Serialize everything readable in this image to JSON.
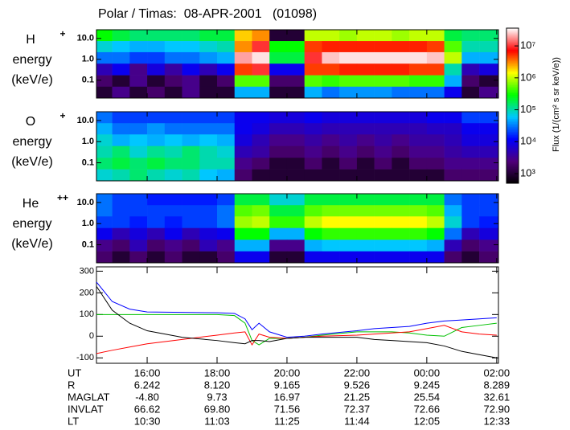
{
  "chart_data": [
    {
      "type": "heatmap",
      "ion": "H",
      "charge": "+",
      "label_lines": [
        "energy",
        "(keV/e)"
      ],
      "xlim": [
        14.55,
        26.05
      ],
      "ylim": [
        0.014,
        26
      ],
      "log_y": true,
      "yticks": [
        {
          "value": 10,
          "label": "10.0"
        },
        {
          "value": 1,
          "label": "1.0"
        },
        {
          "value": 0.1,
          "label": "0.1"
        }
      ],
      "x": [
        14.75,
        15.25,
        15.75,
        16.25,
        16.75,
        17.25,
        17.75,
        18.25,
        18.75,
        19.25,
        19.75,
        20.25,
        20.75,
        21.25,
        21.75,
        22.25,
        22.75,
        23.25,
        23.75,
        24.25,
        24.75,
        25.25,
        25.75
      ],
      "y": [
        14,
        4,
        1.2,
        0.32,
        0.093,
        0.026
      ],
      "values": [
        [
          300000.0,
          200000.0,
          150000.0,
          150000.0,
          150000.0,
          150000.0,
          200000.0,
          200000.0,
          2000000.0,
          3000000.0,
          1000.0,
          1000.0,
          1000000.0,
          1000000.0,
          800000.0,
          1000000.0,
          1000000.0,
          800000.0,
          1000000.0,
          1000000.0,
          200000.0,
          150000.0,
          150000.0
        ],
        [
          80000.0,
          60000.0,
          50000.0,
          50000.0,
          60000.0,
          60000.0,
          80000.0,
          100000.0,
          3000000.0,
          10000000.0,
          300000.0,
          300000.0,
          5000000.0,
          6000000.0,
          6000000.0,
          6000000.0,
          6000000.0,
          6000000.0,
          6000000.0,
          5000000.0,
          500000.0,
          100000.0,
          100000.0
        ],
        [
          30000.0,
          30000.0,
          20000.0,
          20000.0,
          30000.0,
          30000.0,
          40000.0,
          50000.0,
          20000000.0,
          30000000.0,
          200000.0,
          200000.0,
          10000000.0,
          25000000.0,
          30000000.0,
          30000000.0,
          30000000.0,
          30000000.0,
          30000000.0,
          25000000.0,
          1000000.0,
          50000.0,
          50000.0
        ],
        [
          5000.0,
          10000.0,
          3000.0,
          8000.0,
          4000.0,
          10000.0,
          5000.0,
          10000.0,
          5000000.0,
          10000000.0,
          10000.0,
          10000.0,
          5000000.0,
          5000000.0,
          6000000.0,
          6000000.0,
          6000000.0,
          6000000.0,
          5000000.0,
          5000000.0,
          100000.0,
          5000.0,
          8000.0
        ],
        [
          2000.0,
          1000.0,
          3000.0,
          1000.0,
          2000.0,
          3000.0,
          1000.0,
          2000.0,
          500000.0,
          500000.0,
          2000.0,
          2000.0,
          500000.0,
          400000.0,
          500000.0,
          500000.0,
          500000.0,
          500000.0,
          400000.0,
          400000.0,
          50000.0,
          2000.0,
          1000.0
        ],
        [
          1000.0,
          3000.0,
          1000.0,
          2000.0,
          1000.0,
          3000.0,
          1000.0,
          1000.0,
          50000.0,
          50000.0,
          1000.0,
          1000.0,
          50000.0,
          30000.0,
          40000.0,
          40000.0,
          40000.0,
          30000.0,
          30000.0,
          30000.0,
          10000.0,
          1000.0,
          3000.0
        ]
      ]
    },
    {
      "type": "heatmap",
      "ion": "O",
      "charge": "+",
      "label_lines": [
        "energy",
        "(keV/e)"
      ],
      "xlim": [
        14.55,
        26.05
      ],
      "ylim": [
        0.014,
        26
      ],
      "log_y": true,
      "yticks": [
        {
          "value": 10,
          "label": "10.0"
        },
        {
          "value": 1,
          "label": "1.0"
        },
        {
          "value": 0.1,
          "label": "0.1"
        }
      ],
      "x": [
        14.75,
        15.25,
        15.75,
        16.25,
        16.75,
        17.25,
        17.75,
        18.25,
        18.75,
        19.25,
        19.75,
        20.25,
        20.75,
        21.25,
        21.75,
        22.25,
        22.75,
        23.25,
        23.75,
        24.25,
        24.75,
        25.25,
        25.75
      ],
      "y": [
        14,
        4,
        1.2,
        0.32,
        0.093,
        0.026
      ],
      "values": [
        [
          30000.0,
          20000.0,
          20000.0,
          20000.0,
          20000.0,
          20000.0,
          20000.0,
          20000.0,
          10000.0,
          10000.0,
          8000.0,
          8000.0,
          10000.0,
          8000.0,
          8000.0,
          8000.0,
          8000.0,
          8000.0,
          8000.0,
          10000.0,
          10000.0,
          20000.0,
          20000.0
        ],
        [
          50000.0,
          30000.0,
          30000.0,
          40000.0,
          30000.0,
          30000.0,
          30000.0,
          30000.0,
          10000.0,
          8000.0,
          5000.0,
          5000.0,
          6000.0,
          5000.0,
          5000.0,
          5000.0,
          5000.0,
          5000.0,
          5000.0,
          6000.0,
          6000.0,
          10000.0,
          10000.0
        ],
        [
          80000.0,
          50000.0,
          60000.0,
          50000.0,
          60000.0,
          50000.0,
          60000.0,
          50000.0,
          8000.0,
          5000.0,
          3000.0,
          3000.0,
          4000.0,
          3000.0,
          4000.0,
          3000.0,
          4000.0,
          3000.0,
          4000.0,
          4000.0,
          5000.0,
          8000.0,
          8000.0
        ],
        [
          100000.0,
          150000.0,
          80000.0,
          120000.0,
          100000.0,
          150000.0,
          100000.0,
          80000.0,
          5000.0,
          4000.0,
          2000.0,
          2000.0,
          3000.0,
          2000.0,
          3000.0,
          2000.0,
          3000.0,
          2000.0,
          3000.0,
          3000.0,
          4000.0,
          5000.0,
          5000.0
        ],
        [
          150000.0,
          200000.0,
          150000.0,
          200000.0,
          150000.0,
          150000.0,
          100000.0,
          100000.0,
          3000.0,
          2000.0,
          1000.0,
          1000.0,
          2000.0,
          1000.0,
          2000.0,
          1000.0,
          2000.0,
          1000.0,
          2000.0,
          2000.0,
          3000.0,
          3000.0,
          3000.0
        ],
        [
          80000.0,
          100000.0,
          150000.0,
          100000.0,
          80000.0,
          100000.0,
          60000.0,
          50000.0,
          2000.0,
          1000.0,
          1000.0,
          1000.0,
          1000.0,
          1000.0,
          1000.0,
          1000.0,
          1000.0,
          1000.0,
          1000.0,
          1000.0,
          2000.0,
          2000.0,
          2000.0
        ]
      ]
    },
    {
      "type": "heatmap",
      "ion": "He",
      "charge": "++",
      "label_lines": [
        "energy",
        "(keV/e)"
      ],
      "xlim": [
        14.55,
        26.05
      ],
      "ylim": [
        0.014,
        26
      ],
      "log_y": true,
      "yticks": [
        {
          "value": 10,
          "label": "10.0"
        },
        {
          "value": 1,
          "label": "1.0"
        },
        {
          "value": 0.1,
          "label": "0.1"
        }
      ],
      "x": [
        14.75,
        15.25,
        15.75,
        16.25,
        16.75,
        17.25,
        17.75,
        18.25,
        18.75,
        19.25,
        19.75,
        20.25,
        20.75,
        21.25,
        21.75,
        22.25,
        22.75,
        23.25,
        23.75,
        24.25,
        24.75,
        25.25,
        25.75
      ],
      "y": [
        14,
        4,
        1.2,
        0.32,
        0.093,
        0.026
      ],
      "values": [
        [
          30000.0,
          20000.0,
          20000.0,
          15000.0,
          15000.0,
          15000.0,
          15000.0,
          20000.0,
          200000.0,
          200000.0,
          80000.0,
          80000.0,
          200000.0,
          200000.0,
          200000.0,
          200000.0,
          200000.0,
          200000.0,
          200000.0,
          200000.0,
          30000.0,
          20000.0,
          20000.0
        ],
        [
          30000.0,
          20000.0,
          20000.0,
          20000.0,
          20000.0,
          20000.0,
          20000.0,
          30000.0,
          500000.0,
          600000.0,
          200000.0,
          200000.0,
          500000.0,
          600000.0,
          600000.0,
          600000.0,
          600000.0,
          600000.0,
          600000.0,
          500000.0,
          50000.0,
          20000.0,
          20000.0
        ],
        [
          20000.0,
          20000.0,
          15000.0,
          20000.0,
          15000.0,
          20000.0,
          20000.0,
          30000.0,
          800000.0,
          1000000.0,
          400000.0,
          400000.0,
          1000000.0,
          1500000.0,
          1500000.0,
          1500000.0,
          1500000.0,
          1500000.0,
          1500000.0,
          1000000.0,
          80000.0,
          20000.0,
          15000.0
        ],
        [
          10000.0,
          5000.0,
          8000.0,
          5000.0,
          10000.0,
          5000.0,
          8000.0,
          10000.0,
          300000.0,
          300000.0,
          50000.0,
          50000.0,
          300000.0,
          400000.0,
          400000.0,
          400000.0,
          400000.0,
          400000.0,
          400000.0,
          300000.0,
          30000.0,
          5000.0,
          8000.0
        ],
        [
          3000.0,
          2000.0,
          5000.0,
          2000.0,
          3000.0,
          2000.0,
          5000.0,
          3000.0,
          50000.0,
          50000.0,
          3000.0,
          3000.0,
          50000.0,
          60000.0,
          60000.0,
          60000.0,
          60000.0,
          60000.0,
          60000.0,
          50000.0,
          5000.0,
          2000.0,
          3000.0
        ],
        [
          2000.0,
          1000.0,
          2000.0,
          1000.0,
          2000.0,
          1000.0,
          1000.0,
          2000.0,
          10000.0,
          10000.0,
          1000.0,
          1000.0,
          10000.0,
          10000.0,
          10000.0,
          10000.0,
          10000.0,
          10000.0,
          10000.0,
          10000.0,
          2000.0,
          1000.0,
          2000.0
        ]
      ]
    },
    {
      "type": "line",
      "xlim": [
        14.55,
        26.05
      ],
      "ylim": [
        -125,
        320
      ],
      "yticks": [
        -100,
        0,
        100,
        200,
        300
      ],
      "xticks": [
        {
          "value": 16,
          "label": "16:00"
        },
        {
          "value": 18,
          "label": "18:00"
        },
        {
          "value": 20,
          "label": "20:00"
        },
        {
          "value": 22,
          "label": "22:00"
        },
        {
          "value": 24,
          "label": "00:00"
        },
        {
          "value": 26,
          "label": "02:00"
        }
      ],
      "x": [
        14.55,
        15,
        15.5,
        16,
        17,
        18,
        18.5,
        18.8,
        19,
        19.2,
        19.5,
        20,
        20.5,
        21,
        22,
        22.5,
        23,
        23.5,
        24,
        24.5,
        25,
        25.5,
        26
      ],
      "series": [
        {
          "color": "#0000ff",
          "values": [
            250,
            160,
            125,
            112,
            110,
            108,
            105,
            80,
            30,
            60,
            20,
            -5,
            0,
            10,
            25,
            35,
            40,
            45,
            60,
            70,
            75,
            80,
            85
          ]
        },
        {
          "color": "#00c000",
          "values": [
            100,
            100,
            100,
            100,
            100,
            100,
            95,
            60,
            -20,
            -40,
            -10,
            -10,
            -5,
            5,
            20,
            20,
            20,
            15,
            5,
            0,
            40,
            50,
            60
          ]
        },
        {
          "color": "#ff0000",
          "values": [
            -80,
            -65,
            -50,
            -35,
            -15,
            5,
            15,
            20,
            -40,
            10,
            -5,
            -10,
            -5,
            0,
            5,
            10,
            15,
            20,
            35,
            50,
            20,
            10,
            5
          ]
        },
        {
          "color": "#000000",
          "values": [
            230,
            120,
            60,
            25,
            -5,
            -20,
            -30,
            -35,
            -20,
            -20,
            -25,
            -10,
            -5,
            -5,
            -5,
            -15,
            -20,
            -25,
            -30,
            -45,
            -70,
            -85,
            -100
          ]
        }
      ]
    }
  ],
  "title": "Polar / Timas:  08-APR-2001   (01098)",
  "colorbar": {
    "label": "Flux (1/(cm² s sr keV/e))",
    "lim": [
      500,
      36000000.0
    ],
    "ticks": [
      {
        "value": 1000,
        "label": "10³"
      },
      {
        "value": 10000,
        "label": "10⁴"
      },
      {
        "value": 100000,
        "label": "10⁵"
      },
      {
        "value": 1000000,
        "label": "10⁶"
      },
      {
        "value": 10000000,
        "label": "10⁷"
      }
    ],
    "colormap": [
      "#000000",
      "#50007a",
      "#0000ff",
      "#00c8ff",
      "#00ff00",
      "#ffff00",
      "#ff0000",
      "#ffffff"
    ]
  },
  "ephemeris": {
    "ut_label": "UT",
    "rows": [
      {
        "label": "R",
        "values": [
          "6.242",
          "8.120",
          "9.165",
          "9.526",
          "9.245",
          "8.289"
        ]
      },
      {
        "label": "MAGLAT",
        "values": [
          "-4.80",
          "9.73",
          "16.97",
          "21.25",
          "25.54",
          "32.61"
        ]
      },
      {
        "label": "INVLAT",
        "values": [
          "66.62",
          "69.80",
          "71.56",
          "72.37",
          "72.66",
          "72.90"
        ]
      },
      {
        "label": "LT",
        "values": [
          "10:30",
          "11:03",
          "11:25",
          "11:44",
          "12:05",
          "12:33"
        ]
      }
    ]
  }
}
